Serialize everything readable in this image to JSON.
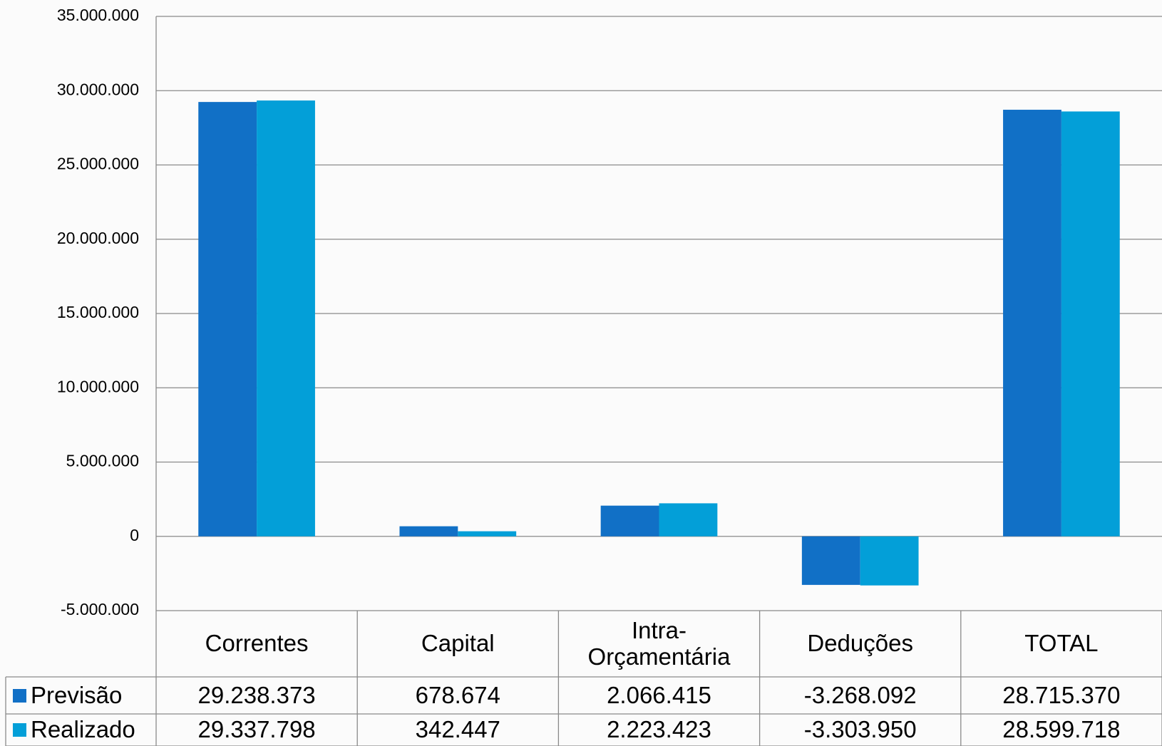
{
  "chart_data": {
    "type": "bar",
    "categories": [
      "Correntes",
      "Capital",
      "Intra-Orçamentária",
      "Deduções",
      "TOTAL"
    ],
    "series": [
      {
        "name": "Previsão",
        "color": "#1170c6",
        "values": [
          29238373,
          678674,
          2066415,
          -3268092,
          28715370
        ],
        "value_labels": [
          "29.238.373",
          "678.674",
          "2.066.415",
          "-3.268.092",
          "28.715.370"
        ]
      },
      {
        "name": "Realizado",
        "color": "#039fd8",
        "values": [
          29337798,
          342447,
          2223423,
          -3303950,
          28599718
        ],
        "value_labels": [
          "29.337.798",
          "342.447",
          "2.223.423",
          "-3.303.950",
          "28.599.718"
        ]
      }
    ],
    "ylim": [
      -5000000,
      35000000
    ],
    "yticks": [
      {
        "value": -5000000,
        "label": "-5.000.000"
      },
      0,
      {
        "value": 5000000,
        "label": "5.000.000"
      },
      {
        "value": 10000000,
        "label": "10.000.000"
      },
      {
        "value": 15000000,
        "label": "15.000.000"
      },
      {
        "value": 20000000,
        "label": "20.000.000"
      },
      {
        "value": 25000000,
        "label": "25.000.000"
      },
      {
        "value": 30000000,
        "label": "30.000.000"
      },
      {
        "value": 35000000,
        "label": "35.000.000"
      }
    ],
    "grid": true
  }
}
